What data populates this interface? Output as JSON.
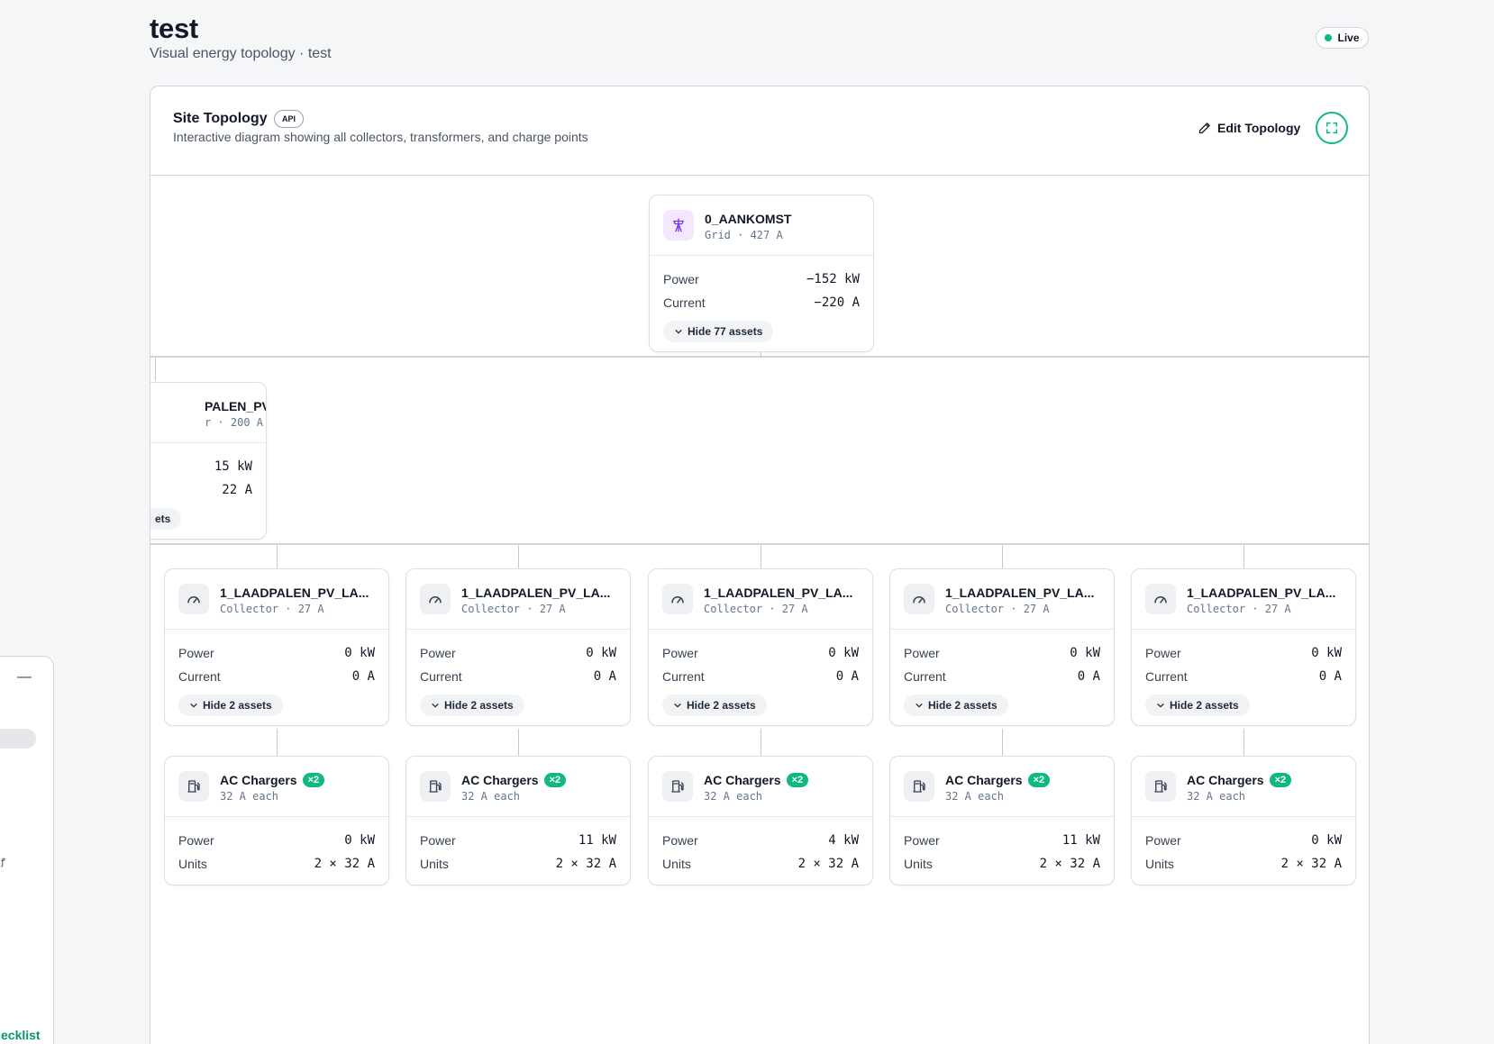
{
  "page": {
    "title": "test",
    "subtitle": "Visual energy topology · test",
    "status": "Live"
  },
  "panel": {
    "title": "Site Topology",
    "api_badge": "API",
    "description": "Interactive diagram showing all collectors, transformers, and charge points",
    "edit_label": "Edit Topology"
  },
  "root": {
    "name": "0_AANKOMST",
    "sub": "Grid · 427 A",
    "icon": "transmission-tower-icon",
    "power_label": "Power",
    "power": "−152 kW",
    "current_label": "Current",
    "current": "−220 A",
    "toggle": "Hide 77 assets"
  },
  "transformer": {
    "name": "PALEN_PV",
    "sub": "r · 200 A",
    "power": "15 kW",
    "current": "22 A",
    "toggle": "ets"
  },
  "collectors": [
    {
      "name": "1_LAADPALEN_PV_LA...",
      "sub": "Collector · 27 A",
      "power_label": "Power",
      "power": "0 kW",
      "current_label": "Current",
      "current": "0 A",
      "toggle": "Hide 2 assets"
    },
    {
      "name": "1_LAADPALEN_PV_LA...",
      "sub": "Collector · 27 A",
      "power_label": "Power",
      "power": "0 kW",
      "current_label": "Current",
      "current": "0 A",
      "toggle": "Hide 2 assets"
    },
    {
      "name": "1_LAADPALEN_PV_LA...",
      "sub": "Collector · 27 A",
      "power_label": "Power",
      "power": "0 kW",
      "current_label": "Current",
      "current": "0 A",
      "toggle": "Hide 2 assets"
    },
    {
      "name": "1_LAADPALEN_PV_LA...",
      "sub": "Collector · 27 A",
      "power_label": "Power",
      "power": "0 kW",
      "current_label": "Current",
      "current": "0 A",
      "toggle": "Hide 2 assets"
    },
    {
      "name": "1_LAADPALEN_PV_LA...",
      "sub": "Collector · 27 A",
      "power_label": "Power",
      "power": "0 kW",
      "current_label": "Current",
      "current": "0 A",
      "toggle": "Hide 2 assets"
    }
  ],
  "chargers": [
    {
      "name": "AC Chargers",
      "count": "×2",
      "sub": "32 A each",
      "power_label": "Power",
      "power": "0 kW",
      "units_label": "Units",
      "units": "2 × 32 A"
    },
    {
      "name": "AC Chargers",
      "count": "×2",
      "sub": "32 A each",
      "power_label": "Power",
      "power": "11 kW",
      "units_label": "Units",
      "units": "2 × 32 A"
    },
    {
      "name": "AC Chargers",
      "count": "×2",
      "sub": "32 A each",
      "power_label": "Power",
      "power": "4 kW",
      "units_label": "Units",
      "units": "2 × 32 A"
    },
    {
      "name": "AC Chargers",
      "count": "×2",
      "sub": "32 A each",
      "power_label": "Power",
      "power": "11 kW",
      "units_label": "Units",
      "units": "2 × 32 A"
    },
    {
      "name": "AC Chargers",
      "count": "×2",
      "sub": "32 A each",
      "power_label": "Power",
      "power": "0 kW",
      "units_label": "Units",
      "units": "2 × 32 A"
    }
  ],
  "side": {
    "mark": "ꝭ",
    "link": "ecklist"
  },
  "colors": {
    "accent": "#10b981",
    "grid_icon": "#7c3aed"
  }
}
